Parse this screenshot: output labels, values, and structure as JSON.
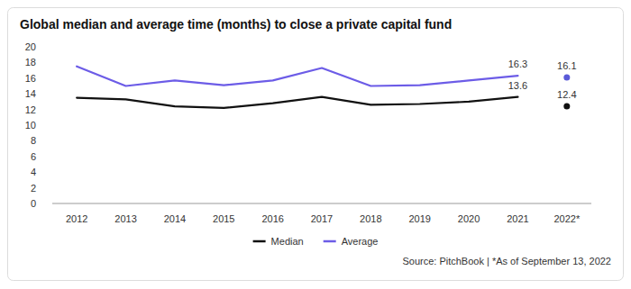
{
  "chart_data": {
    "type": "line",
    "title": "Global median and average time (months) to close a private capital fund",
    "source": "Source: PitchBook | *As of September 13, 2022",
    "categories": [
      "2012",
      "2013",
      "2014",
      "2015",
      "2016",
      "2017",
      "2018",
      "2019",
      "2020",
      "2021",
      "2022*"
    ],
    "series": [
      {
        "name": "Median",
        "color": "#111111",
        "values": [
          13.5,
          13.3,
          12.4,
          12.2,
          12.8,
          13.6,
          12.6,
          12.7,
          13.0,
          13.6,
          null
        ],
        "value_labels": [
          null,
          null,
          null,
          null,
          null,
          null,
          null,
          null,
          null,
          "13.6",
          null
        ]
      },
      {
        "name": "Average",
        "color": "#6c5ce7",
        "values": [
          17.5,
          15.0,
          15.7,
          15.1,
          15.7,
          17.3,
          15.0,
          15.1,
          15.7,
          16.3,
          null
        ],
        "value_labels": [
          null,
          null,
          null,
          null,
          null,
          null,
          null,
          null,
          null,
          "16.3",
          null
        ]
      },
      {
        "type": "scatter",
        "color": "#111111",
        "marker": "circle",
        "values": [
          null,
          null,
          null,
          null,
          null,
          null,
          null,
          null,
          null,
          null,
          12.4
        ],
        "value_labels": [
          null,
          null,
          null,
          null,
          null,
          null,
          null,
          null,
          null,
          null,
          "12.4"
        ]
      },
      {
        "type": "scatter",
        "color": "#5a5ad8",
        "marker": "circle",
        "values": [
          null,
          null,
          null,
          null,
          null,
          null,
          null,
          null,
          null,
          null,
          16.1
        ],
        "value_labels": [
          null,
          null,
          null,
          null,
          null,
          null,
          null,
          null,
          null,
          null,
          "16.1"
        ]
      }
    ],
    "ylim": [
      0,
      20
    ],
    "yticks": [
      0,
      2,
      4,
      6,
      8,
      10,
      12,
      14,
      16,
      18,
      20
    ],
    "grid": false,
    "data_labels": true,
    "legend": "bottom"
  }
}
